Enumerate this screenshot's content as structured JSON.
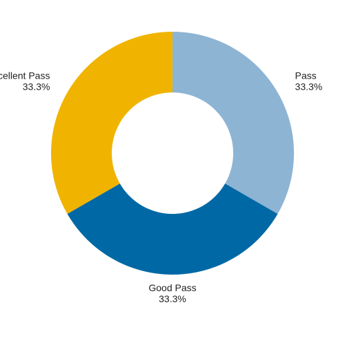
{
  "chart_data": {
    "type": "pie",
    "variant": "donut",
    "title": "",
    "slices": [
      {
        "label": "Pass",
        "value": 33.3,
        "value_label": "33.3%",
        "color": "#8eb4d4"
      },
      {
        "label": "Good Pass",
        "value": 33.3,
        "value_label": "33.3%",
        "color": "#0068a5"
      },
      {
        "label": "Excellent Pass",
        "value": 33.3,
        "value_label": "33.3%",
        "color": "#f0b400"
      }
    ],
    "legend": "none",
    "labels_outside": true
  }
}
